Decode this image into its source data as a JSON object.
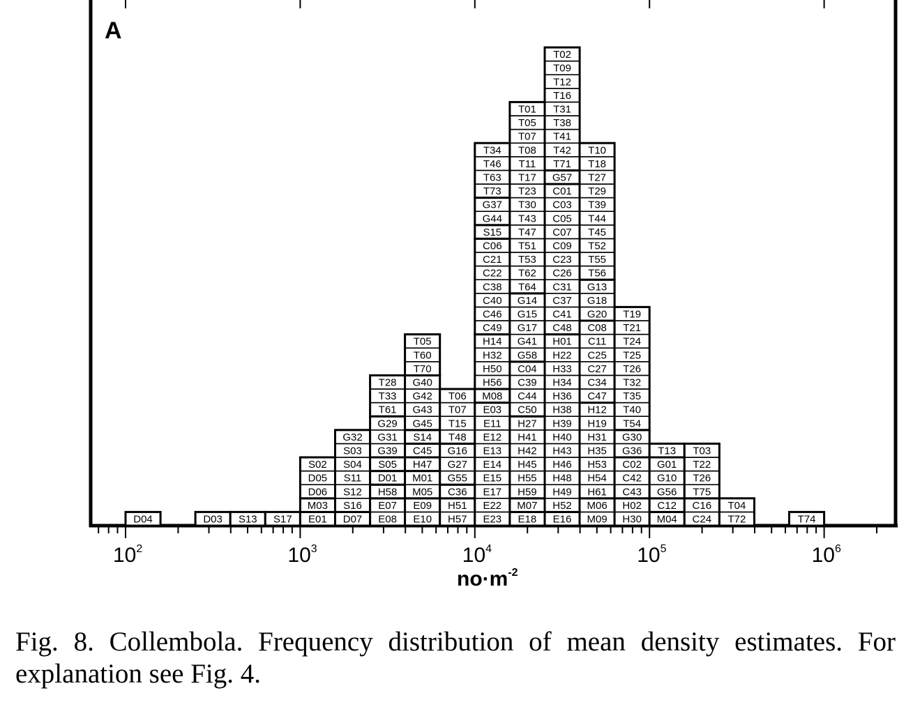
{
  "chart_data": {
    "type": "histogram",
    "panel_label": "A",
    "xlabel": "no·m",
    "xlabel_exponent": "-2",
    "x_scale": "log10",
    "xlim": [
      0.0,
      4.4
    ],
    "bin_width_decades": 0.2,
    "x_ticks": [
      {
        "base": "10",
        "exp": "2",
        "value": 100
      },
      {
        "base": "10",
        "exp": "3",
        "value": 1000
      },
      {
        "base": "10",
        "exp": "4",
        "value": 10000
      },
      {
        "base": "10",
        "exp": "5",
        "value": 100000
      },
      {
        "base": "10",
        "exp": "6",
        "value": 1000000
      }
    ],
    "bins": [
      {
        "start": 100,
        "items": [
          [
            "D04"
          ]
        ]
      },
      {
        "start": 251,
        "items": [
          [
            "D03"
          ]
        ]
      },
      {
        "start": 398,
        "items": [
          [
            "S13"
          ]
        ]
      },
      {
        "start": 631,
        "items": [
          [
            "S17"
          ]
        ]
      },
      {
        "start": 1000,
        "items": [
          [
            "E01"
          ],
          [
            "M03"
          ],
          [
            "D06",
            "D05",
            "S02"
          ]
        ]
      },
      {
        "start": 1585,
        "items": [
          [
            "D07"
          ],
          [
            "S16",
            "S12",
            "S11",
            "S04",
            "S03",
            "G32"
          ]
        ]
      },
      {
        "start": 2512,
        "items": [
          [
            "E08",
            "E07"
          ],
          [
            "H58"
          ],
          [
            "D01"
          ],
          [
            "S05"
          ],
          [
            "G39",
            "G31",
            "G29"
          ],
          [
            "T61",
            "T33",
            "T28"
          ]
        ]
      },
      {
        "start": 3981,
        "items": [
          [
            "E10",
            "E09"
          ],
          [
            "M05",
            "M01"
          ],
          [
            "H47"
          ],
          [
            "C45"
          ],
          [
            "S14"
          ],
          [
            "G45",
            "G43",
            "G42",
            "G40"
          ],
          [
            "T70",
            "T60",
            "T05"
          ]
        ]
      },
      {
        "start": 6310,
        "items": [
          [
            "H57",
            "H51"
          ],
          [
            "C36"
          ],
          [
            "G55",
            "G27",
            "G16"
          ],
          [
            "T48",
            "T15",
            "T07",
            "T06"
          ]
        ]
      },
      {
        "start": 10000,
        "items": [
          [
            "E23",
            "E22",
            "E17",
            "E15",
            "E14",
            "E13",
            "E12",
            "E11",
            "E03"
          ],
          [
            "M08"
          ],
          [
            "H56",
            "H50",
            "H32",
            "H14"
          ],
          [
            "C49",
            "C46",
            "C40",
            "C38",
            "C22",
            "C21",
            "C06"
          ],
          [
            "S15"
          ],
          [
            "G44",
            "G37"
          ],
          [
            "T73",
            "T63",
            "T46",
            "T34"
          ]
        ]
      },
      {
        "start": 15849,
        "items": [
          [
            "E18"
          ],
          [
            "M07"
          ],
          [
            "H59",
            "H55",
            "H45",
            "H42",
            "H41",
            "H27"
          ],
          [
            "C50",
            "C44",
            "C39",
            "C04"
          ],
          [
            "G58",
            "G41",
            "G17",
            "G15",
            "G14"
          ],
          [
            "T64",
            "T62",
            "T53",
            "T51",
            "T47",
            "T43",
            "T30",
            "T23",
            "T17",
            "T11",
            "T08",
            "T07",
            "T05",
            "T01"
          ]
        ]
      },
      {
        "start": 25119,
        "items": [
          [
            "E16"
          ],
          [
            "H52",
            "H49",
            "H48",
            "H46",
            "H43",
            "H40",
            "H39",
            "H38",
            "H36",
            "H34",
            "H33",
            "H22",
            "H01"
          ],
          [
            "C48",
            "C41",
            "C37",
            "C31",
            "C26",
            "C23",
            "C09",
            "C07",
            "C05",
            "C03",
            "C01"
          ],
          [
            "G57"
          ],
          [
            "T71",
            "T42",
            "T41",
            "T38",
            "T31",
            "T16",
            "T12",
            "T09",
            "T02"
          ]
        ]
      },
      {
        "start": 39811,
        "items": [
          [
            "M09",
            "M06"
          ],
          [
            "H61",
            "H54",
            "H53",
            "H35",
            "H31",
            "H19",
            "H12"
          ],
          [
            "C47",
            "C34",
            "C27",
            "C25",
            "C11",
            "C08"
          ],
          [
            "G20",
            "G18",
            "G13"
          ],
          [
            "T56",
            "T55",
            "T52",
            "T45",
            "T44",
            "T39",
            "T29",
            "T27",
            "T18",
            "T10"
          ]
        ]
      },
      {
        "start": 63096,
        "items": [
          [
            "H30",
            "H02"
          ],
          [
            "C43",
            "C42",
            "C02"
          ],
          [
            "G36",
            "G30"
          ],
          [
            "T54",
            "T40",
            "T35",
            "T32",
            "T26",
            "T25",
            "T24",
            "T21",
            "T19"
          ]
        ]
      },
      {
        "start": 100000,
        "items": [
          [
            "M04"
          ],
          [
            "C12"
          ],
          [
            "G56",
            "G10",
            "G01"
          ],
          [
            "T13"
          ]
        ]
      },
      {
        "start": 158489,
        "items": [
          [
            "C24",
            "C16"
          ],
          [
            "T75",
            "T26",
            "T22",
            "T03"
          ]
        ]
      },
      {
        "start": 251189,
        "items": [
          [
            "T72",
            "T04"
          ]
        ]
      },
      {
        "start": 630957,
        "items": [
          [
            "T74"
          ]
        ]
      }
    ]
  },
  "caption": "Fig. 8. Collembola. Frequency distribution of mean density estimates. For explanation see Fig. 4."
}
